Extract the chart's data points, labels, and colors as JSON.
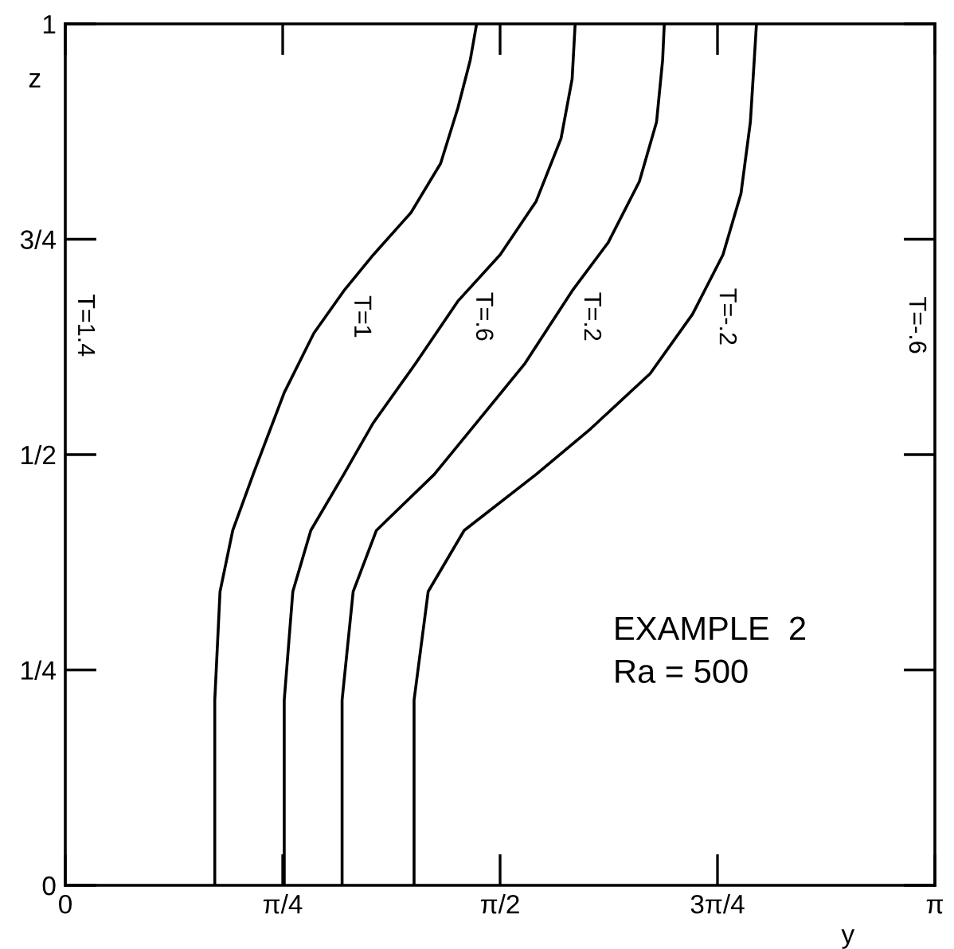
{
  "chart_data": {
    "type": "line",
    "xlabel": "y",
    "ylabel": "z",
    "xlim": [
      0,
      3.1416
    ],
    "ylim": [
      0,
      1
    ],
    "xticks": [
      0,
      {
        "value": 0.7854,
        "label": "π/4"
      },
      {
        "value": 1.5708,
        "label": "π/2"
      },
      {
        "value": 2.3562,
        "label": "3π/4"
      },
      {
        "value": 3.1416,
        "label": "π"
      }
    ],
    "yticks": [
      0,
      {
        "value": 0.25,
        "label": "1/4"
      },
      {
        "value": 0.5,
        "label": "1/2"
      },
      {
        "value": 0.75,
        "label": "3/4"
      },
      1
    ],
    "grid": false,
    "legend": false,
    "marker": "none",
    "line_style": "solid",
    "series": [
      {
        "name": "T=1",
        "color": "#000000",
        "x": [
          0.54,
          0.54,
          0.559,
          0.605,
          0.681,
          0.791,
          0.898,
          1.006,
          1.113,
          1.249,
          1.356,
          1.418,
          1.463,
          1.486
        ],
        "values": [
          0,
          0.215,
          0.341,
          0.412,
          0.479,
          0.572,
          0.641,
          0.69,
          0.732,
          0.781,
          0.838,
          0.902,
          0.958,
          1.0
        ]
      },
      {
        "name": "T=.6",
        "color": "#000000",
        "x": [
          0.791,
          0.791,
          0.822,
          0.887,
          1.006,
          1.113,
          1.266,
          1.418,
          1.571,
          1.701,
          1.791,
          1.831,
          1.842
        ],
        "values": [
          0,
          0.215,
          0.341,
          0.412,
          0.477,
          0.537,
          0.606,
          0.678,
          0.732,
          0.794,
          0.867,
          0.936,
          1.0
        ]
      },
      {
        "name": "T=.2",
        "color": "#000000",
        "x": [
          1.0,
          1.0,
          1.04,
          1.124,
          1.333,
          1.486,
          1.661,
          1.831,
          1.961,
          2.074,
          2.136,
          2.158,
          2.164
        ],
        "values": [
          0,
          0.215,
          0.341,
          0.412,
          0.477,
          0.537,
          0.606,
          0.69,
          0.746,
          0.817,
          0.886,
          0.958,
          1.0
        ]
      },
      {
        "name": "T=-.2",
        "color": "#000000",
        "x": [
          1.26,
          1.26,
          1.311,
          1.441,
          1.701,
          1.898,
          2.113,
          2.266,
          2.376,
          2.441,
          2.475,
          2.489,
          2.497
        ],
        "values": [
          0,
          0.215,
          0.341,
          0.412,
          0.477,
          0.53,
          0.594,
          0.663,
          0.732,
          0.803,
          0.886,
          0.958,
          1.0
        ]
      }
    ],
    "annotations": [
      "T=1.4",
      "T=-.6",
      "EXAMPLE  2\nRa = 500"
    ]
  }
}
